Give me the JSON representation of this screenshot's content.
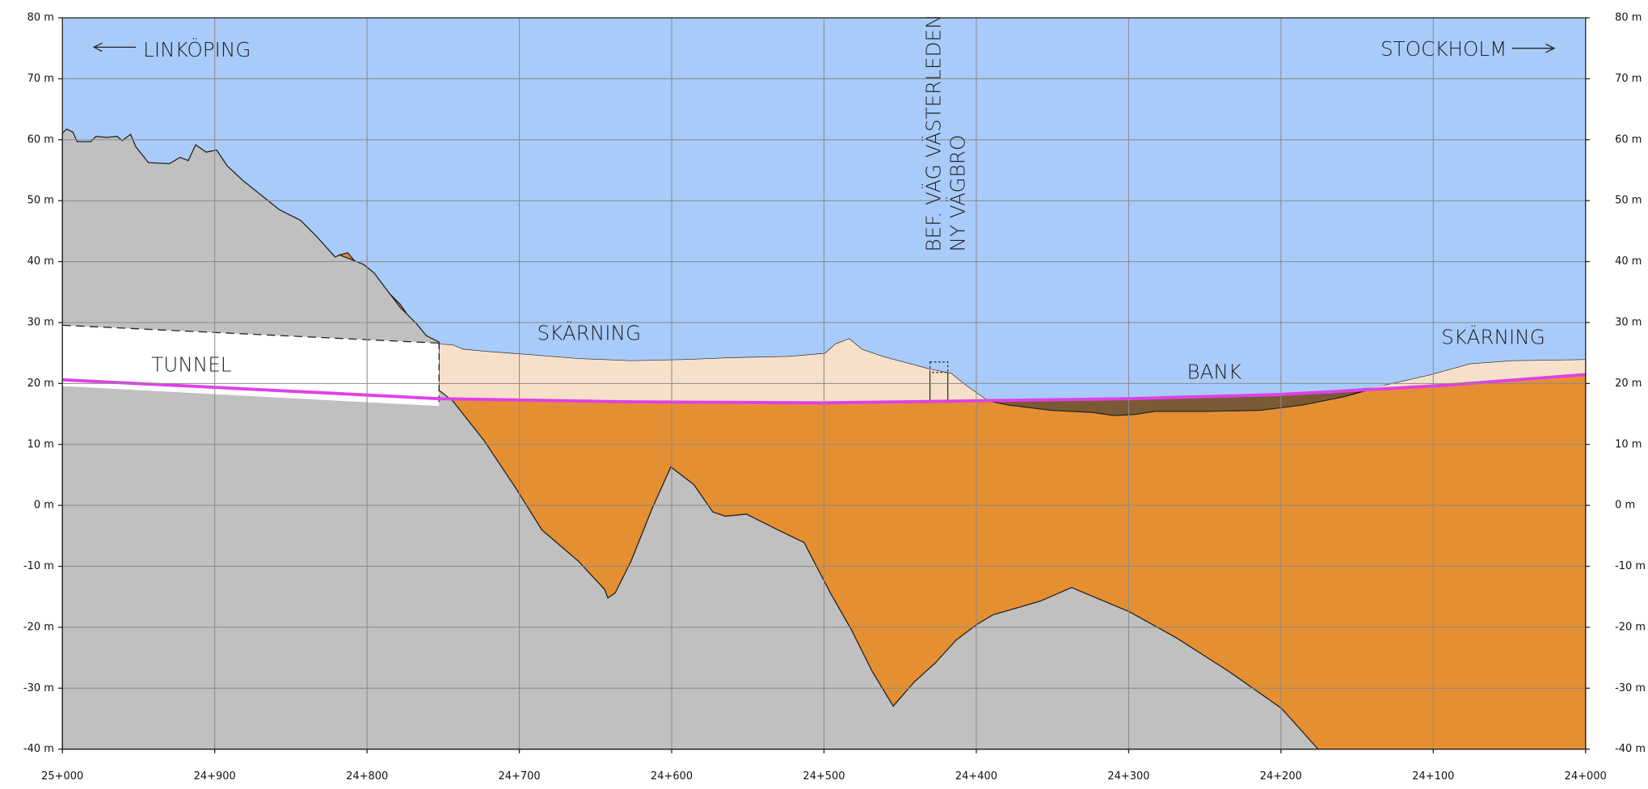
{
  "axes": {
    "y_left": [
      "80 m",
      "70 m",
      "60 m",
      "50 m",
      "40 m",
      "30 m",
      "20 m",
      "10 m",
      "0 m",
      "-10 m",
      "-20 m",
      "-30 m",
      "-40 m"
    ],
    "y_right": [
      "80 m",
      "70 m",
      "60 m",
      "50 m",
      "40 m",
      "30 m",
      "20 m",
      "10 m",
      "0 m",
      "-10 m",
      "-20 m",
      "-30 m",
      "-40 m"
    ],
    "x": [
      "25+000",
      "24+900",
      "24+800",
      "24+700",
      "24+600",
      "24+500",
      "24+400",
      "24+300",
      "24+200",
      "24+100",
      "24+000"
    ]
  },
  "labels": {
    "left_direction": "LINKÖPING",
    "right_direction": "STOCKHOLM",
    "tunnel": "TUNNEL",
    "cut_left": "SKÄRNING",
    "cut_right": "SKÄRNING",
    "embankment": "BANK",
    "existing_road": "BEF. VÄG VÄSTERLEDEN",
    "new_bridge": "NY VÄGBRO"
  }
}
